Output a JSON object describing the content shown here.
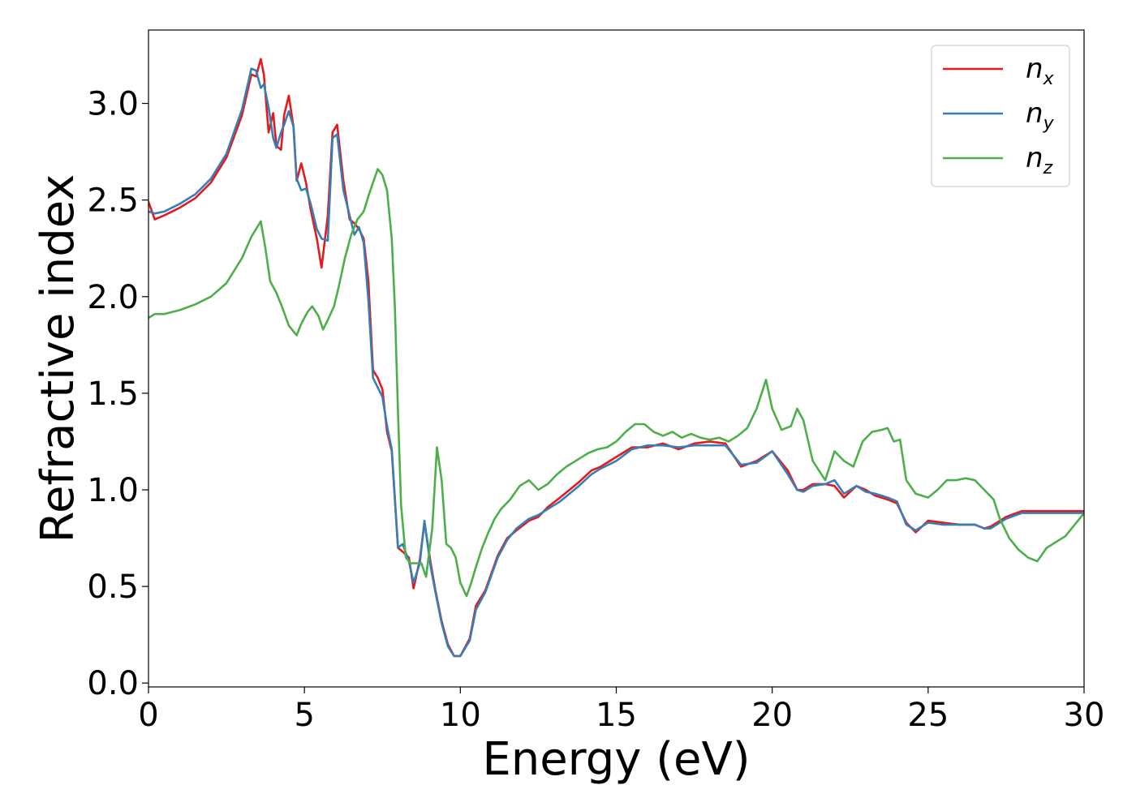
{
  "chart_data": {
    "type": "line",
    "xlabel": "Energy (eV)",
    "ylabel": "Refractive index",
    "xlim": [
      0,
      30
    ],
    "ylim": [
      -0.02,
      3.38
    ],
    "xticks": [
      "0",
      "5",
      "10",
      "15",
      "20",
      "25",
      "30"
    ],
    "yticks": [
      "0.0",
      "0.5",
      "1.0",
      "1.5",
      "2.0",
      "2.5",
      "3.0"
    ],
    "grid": false,
    "legend_position": "top-right",
    "series": [
      {
        "name": "n_x",
        "label_base": "n",
        "label_sub": "x",
        "color": "#e41a1c",
        "x": [
          0,
          0.2,
          0.5,
          1,
          1.5,
          2,
          2.5,
          3,
          3.3,
          3.45,
          3.6,
          3.7,
          3.85,
          4,
          4.1,
          4.25,
          4.35,
          4.5,
          4.65,
          4.75,
          4.9,
          5.05,
          5.2,
          5.4,
          5.55,
          5.75,
          5.9,
          6.05,
          6.25,
          6.45,
          6.6,
          6.75,
          6.9,
          7.05,
          7.2,
          7.35,
          7.5,
          7.65,
          7.8,
          8,
          8.15,
          8.35,
          8.5,
          8.7,
          8.85,
          9.05,
          9.2,
          9.4,
          9.6,
          9.8,
          10,
          10.3,
          10.5,
          10.8,
          11,
          11.2,
          11.5,
          11.8,
          12.2,
          12.5,
          12.8,
          13.2,
          13.5,
          13.8,
          14.2,
          14.5,
          15,
          15.5,
          16,
          16.5,
          17,
          17.5,
          18,
          18.5,
          19,
          19.5,
          20,
          20.5,
          20.8,
          21,
          21.3,
          21.7,
          22,
          22.3,
          22.7,
          23,
          23.3,
          23.7,
          24,
          24.3,
          24.6,
          25,
          25.5,
          26,
          26.5,
          26.8,
          27,
          27.5,
          28,
          28.3,
          28.7,
          29,
          29.5,
          30
        ],
        "y": [
          2.49,
          2.4,
          2.42,
          2.46,
          2.51,
          2.59,
          2.72,
          2.94,
          3.15,
          3.14,
          3.23,
          3.15,
          2.85,
          2.95,
          2.78,
          2.76,
          2.94,
          3.04,
          2.88,
          2.6,
          2.69,
          2.59,
          2.45,
          2.3,
          2.15,
          2.42,
          2.85,
          2.89,
          2.6,
          2.4,
          2.38,
          2.35,
          2.3,
          2.08,
          1.62,
          1.58,
          1.52,
          1.3,
          1.2,
          0.7,
          0.68,
          0.65,
          0.49,
          0.64,
          0.83,
          0.62,
          0.48,
          0.32,
          0.2,
          0.14,
          0.14,
          0.23,
          0.4,
          0.48,
          0.57,
          0.66,
          0.75,
          0.79,
          0.84,
          0.86,
          0.91,
          0.96,
          1.0,
          1.04,
          1.1,
          1.12,
          1.17,
          1.22,
          1.22,
          1.24,
          1.21,
          1.24,
          1.25,
          1.24,
          1.12,
          1.15,
          1.2,
          1.1,
          1.0,
          1.0,
          1.03,
          1.03,
          1.02,
          0.96,
          1.02,
          1.0,
          0.97,
          0.95,
          0.93,
          0.83,
          0.78,
          0.84,
          0.83,
          0.82,
          0.82,
          0.8,
          0.81,
          0.86,
          0.89,
          0.89,
          0.89,
          0.89,
          0.89,
          0.89
        ]
      },
      {
        "name": "n_y",
        "label_base": "n",
        "label_sub": "y",
        "color": "#377eb8",
        "x": [
          0,
          0.2,
          0.5,
          1,
          1.5,
          2,
          2.5,
          3,
          3.3,
          3.45,
          3.6,
          3.7,
          3.85,
          4,
          4.1,
          4.25,
          4.35,
          4.5,
          4.65,
          4.75,
          4.9,
          5.05,
          5.2,
          5.4,
          5.55,
          5.75,
          5.9,
          6.05,
          6.25,
          6.45,
          6.6,
          6.75,
          6.9,
          7.05,
          7.2,
          7.35,
          7.5,
          7.65,
          7.8,
          8,
          8.15,
          8.35,
          8.5,
          8.7,
          8.85,
          9.05,
          9.2,
          9.4,
          9.6,
          9.8,
          10,
          10.3,
          10.5,
          10.8,
          11,
          11.2,
          11.5,
          11.8,
          12.2,
          12.5,
          12.8,
          13.2,
          13.5,
          13.8,
          14.2,
          14.5,
          15,
          15.5,
          16,
          16.5,
          17,
          17.5,
          18,
          18.5,
          19,
          19.5,
          20,
          20.5,
          20.8,
          21,
          21.3,
          21.7,
          22,
          22.3,
          22.7,
          23,
          23.3,
          23.7,
          24,
          24.3,
          24.6,
          25,
          25.5,
          26,
          26.5,
          26.8,
          27,
          27.5,
          28,
          28.3,
          28.7,
          29,
          29.5,
          30
        ],
        "y": [
          2.44,
          2.43,
          2.44,
          2.48,
          2.53,
          2.61,
          2.74,
          2.97,
          3.18,
          3.17,
          3.08,
          3.1,
          2.98,
          2.82,
          2.77,
          2.85,
          2.89,
          2.96,
          2.88,
          2.61,
          2.55,
          2.56,
          2.48,
          2.35,
          2.3,
          2.29,
          2.82,
          2.84,
          2.55,
          2.42,
          2.32,
          2.36,
          2.28,
          1.98,
          1.58,
          1.53,
          1.48,
          1.33,
          1.21,
          0.7,
          0.72,
          0.63,
          0.52,
          0.62,
          0.84,
          0.6,
          0.47,
          0.31,
          0.19,
          0.14,
          0.14,
          0.22,
          0.38,
          0.47,
          0.56,
          0.65,
          0.74,
          0.8,
          0.85,
          0.87,
          0.9,
          0.94,
          0.98,
          1.02,
          1.08,
          1.11,
          1.15,
          1.21,
          1.23,
          1.23,
          1.22,
          1.23,
          1.23,
          1.23,
          1.13,
          1.14,
          1.2,
          1.08,
          1.0,
          0.99,
          1.02,
          1.03,
          1.05,
          0.98,
          1.02,
          0.99,
          0.98,
          0.96,
          0.94,
          0.82,
          0.79,
          0.83,
          0.82,
          0.82,
          0.82,
          0.8,
          0.8,
          0.85,
          0.88,
          0.88,
          0.88,
          0.88,
          0.88,
          0.88
        ]
      },
      {
        "name": "n_z",
        "label_base": "n",
        "label_sub": "z",
        "color": "#4daf4a",
        "x": [
          0,
          0.2,
          0.5,
          1,
          1.5,
          2,
          2.5,
          3,
          3.3,
          3.6,
          3.75,
          3.9,
          4.1,
          4.3,
          4.5,
          4.75,
          4.9,
          5.1,
          5.25,
          5.45,
          5.6,
          5.75,
          5.95,
          6.1,
          6.3,
          6.5,
          6.7,
          6.9,
          7.05,
          7.2,
          7.35,
          7.5,
          7.65,
          7.8,
          7.9,
          8,
          8.1,
          8.25,
          8.4,
          8.55,
          8.75,
          8.9,
          9.1,
          9.25,
          9.4,
          9.55,
          9.7,
          9.85,
          10,
          10.2,
          10.35,
          10.5,
          10.7,
          10.9,
          11.1,
          11.3,
          11.6,
          11.9,
          12.2,
          12.5,
          12.8,
          13.1,
          13.4,
          13.7,
          14.1,
          14.4,
          14.7,
          15,
          15.3,
          15.6,
          15.9,
          16.2,
          16.5,
          16.8,
          17.1,
          17.4,
          17.7,
          18,
          18.3,
          18.6,
          18.9,
          19.2,
          19.5,
          19.8,
          20,
          20.3,
          20.6,
          20.8,
          21,
          21.3,
          21.7,
          22,
          22.3,
          22.6,
          22.9,
          23.2,
          23.5,
          23.7,
          23.9,
          24.1,
          24.3,
          24.6,
          25,
          25.3,
          25.6,
          25.9,
          26.2,
          26.5,
          26.8,
          27.1,
          27.3,
          27.6,
          27.9,
          28.2,
          28.5,
          28.8,
          29.1,
          29.4,
          29.7,
          30
        ],
        "y": [
          1.89,
          1.91,
          1.91,
          1.93,
          1.96,
          2.0,
          2.07,
          2.2,
          2.31,
          2.39,
          2.25,
          2.08,
          2.02,
          1.94,
          1.85,
          1.8,
          1.86,
          1.92,
          1.95,
          1.9,
          1.83,
          1.88,
          1.95,
          2.05,
          2.2,
          2.32,
          2.4,
          2.44,
          2.52,
          2.59,
          2.66,
          2.63,
          2.55,
          2.3,
          1.95,
          1.4,
          0.92,
          0.65,
          0.62,
          0.62,
          0.62,
          0.55,
          0.8,
          1.22,
          1.05,
          0.72,
          0.7,
          0.65,
          0.52,
          0.45,
          0.52,
          0.6,
          0.7,
          0.78,
          0.85,
          0.9,
          0.95,
          1.02,
          1.05,
          1.0,
          1.03,
          1.08,
          1.12,
          1.15,
          1.19,
          1.21,
          1.22,
          1.25,
          1.3,
          1.34,
          1.34,
          1.3,
          1.28,
          1.3,
          1.27,
          1.29,
          1.27,
          1.26,
          1.27,
          1.25,
          1.28,
          1.32,
          1.42,
          1.57,
          1.42,
          1.31,
          1.33,
          1.42,
          1.36,
          1.15,
          1.05,
          1.2,
          1.15,
          1.12,
          1.25,
          1.3,
          1.31,
          1.32,
          1.25,
          1.26,
          1.05,
          0.98,
          0.96,
          1.0,
          1.05,
          1.05,
          1.06,
          1.05,
          1.0,
          0.95,
          0.85,
          0.75,
          0.69,
          0.65,
          0.63,
          0.7,
          0.73,
          0.76,
          0.82,
          0.88
        ]
      }
    ]
  }
}
